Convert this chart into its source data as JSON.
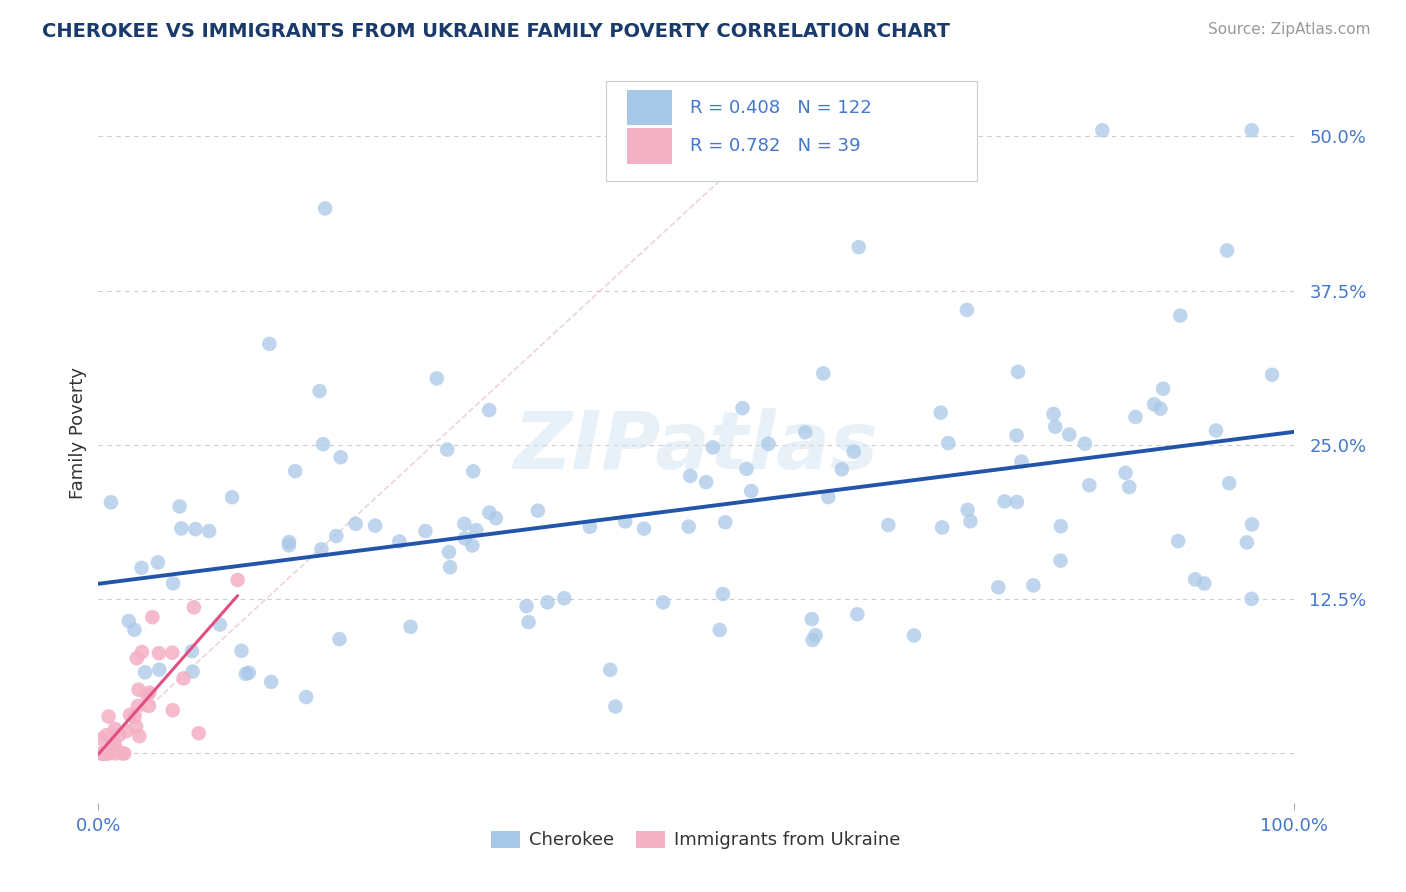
{
  "title": "CHEROKEE VS IMMIGRANTS FROM UKRAINE FAMILY POVERTY CORRELATION CHART",
  "source": "Source: ZipAtlas.com",
  "ylabel": "Family Poverty",
  "xlim": [
    0,
    1.0
  ],
  "ylim": [
    -0.04,
    0.56
  ],
  "cherokee_R": 0.408,
  "cherokee_N": 122,
  "ukraine_R": 0.782,
  "ukraine_N": 39,
  "cherokee_color": "#a8c8e8",
  "cherokee_line_color": "#2255aa",
  "ukraine_color": "#f4b0c4",
  "ukraine_line_color": "#e05080",
  "watermark_text": "ZIPatlas",
  "background_color": "#ffffff",
  "grid_color": "#cccccc",
  "title_color": "#1a3a6b",
  "source_color": "#999999",
  "tick_color": "#4477cc",
  "ylabel_color": "#333333"
}
